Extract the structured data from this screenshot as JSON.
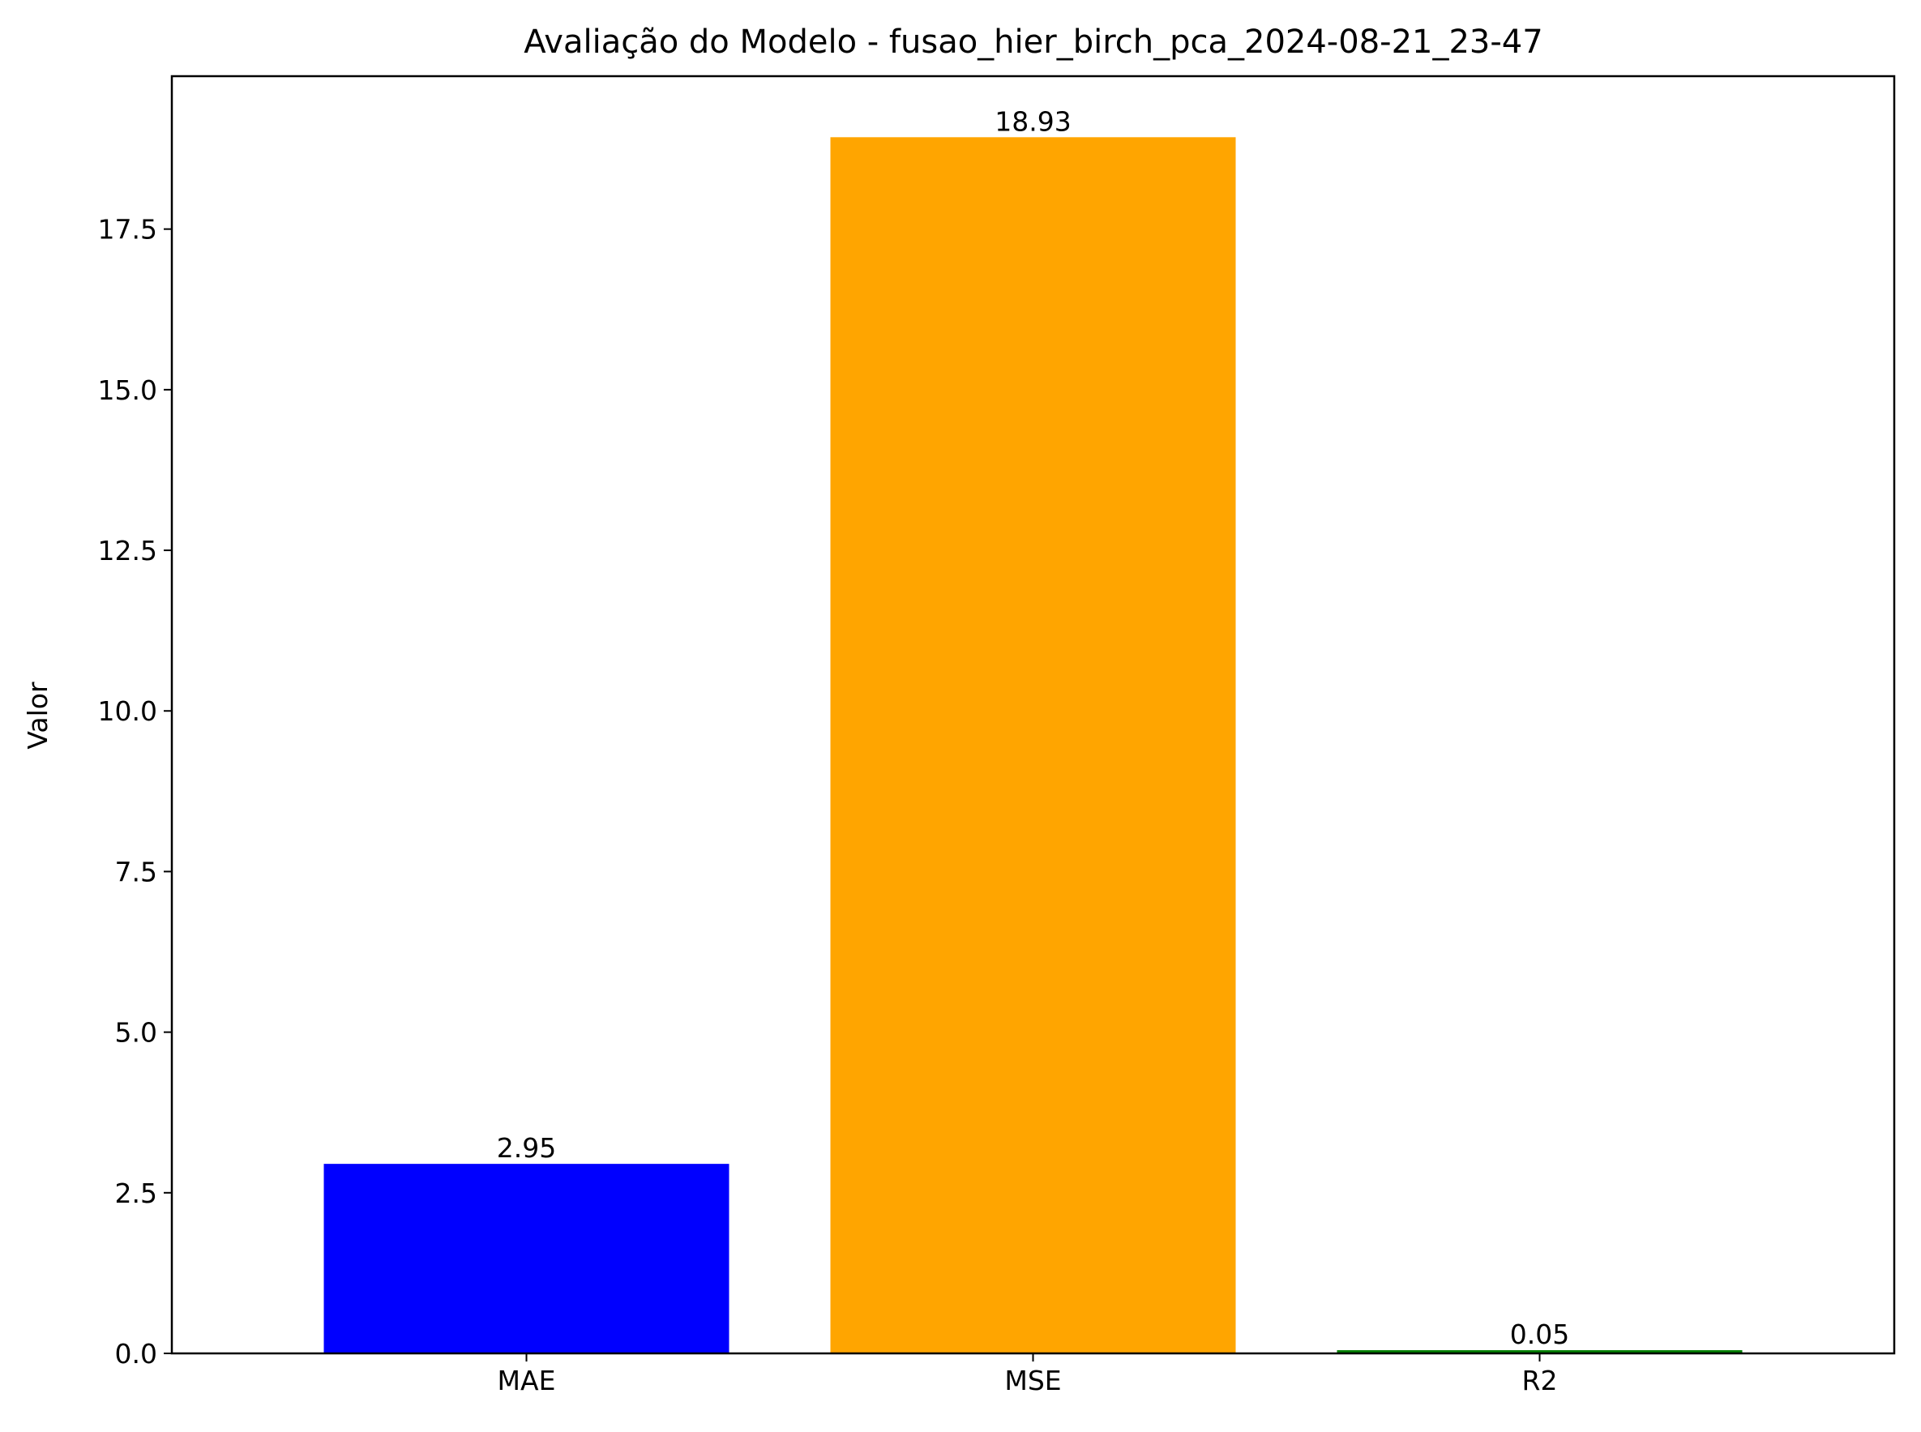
{
  "chart_data": {
    "type": "bar",
    "title": "Avaliação do Modelo - fusao_hier_birch_pca_2024-08-21_23-47",
    "xlabel": "",
    "ylabel": "Valor",
    "categories": [
      "MAE",
      "MSE",
      "R2"
    ],
    "values": [
      2.95,
      18.93,
      0.05
    ],
    "value_labels": [
      "2.95",
      "18.93",
      "0.05"
    ],
    "colors": [
      "#0000ff",
      "#ffa500",
      "#008000"
    ],
    "ylim": [
      0,
      19.88
    ],
    "yticks": [
      0.0,
      2.5,
      5.0,
      7.5,
      10.0,
      12.5,
      15.0,
      17.5
    ],
    "ytick_labels": [
      "0.0",
      "2.5",
      "5.0",
      "7.5",
      "10.0",
      "12.5",
      "15.0",
      "17.5"
    ],
    "grid": false,
    "legend": false
  }
}
